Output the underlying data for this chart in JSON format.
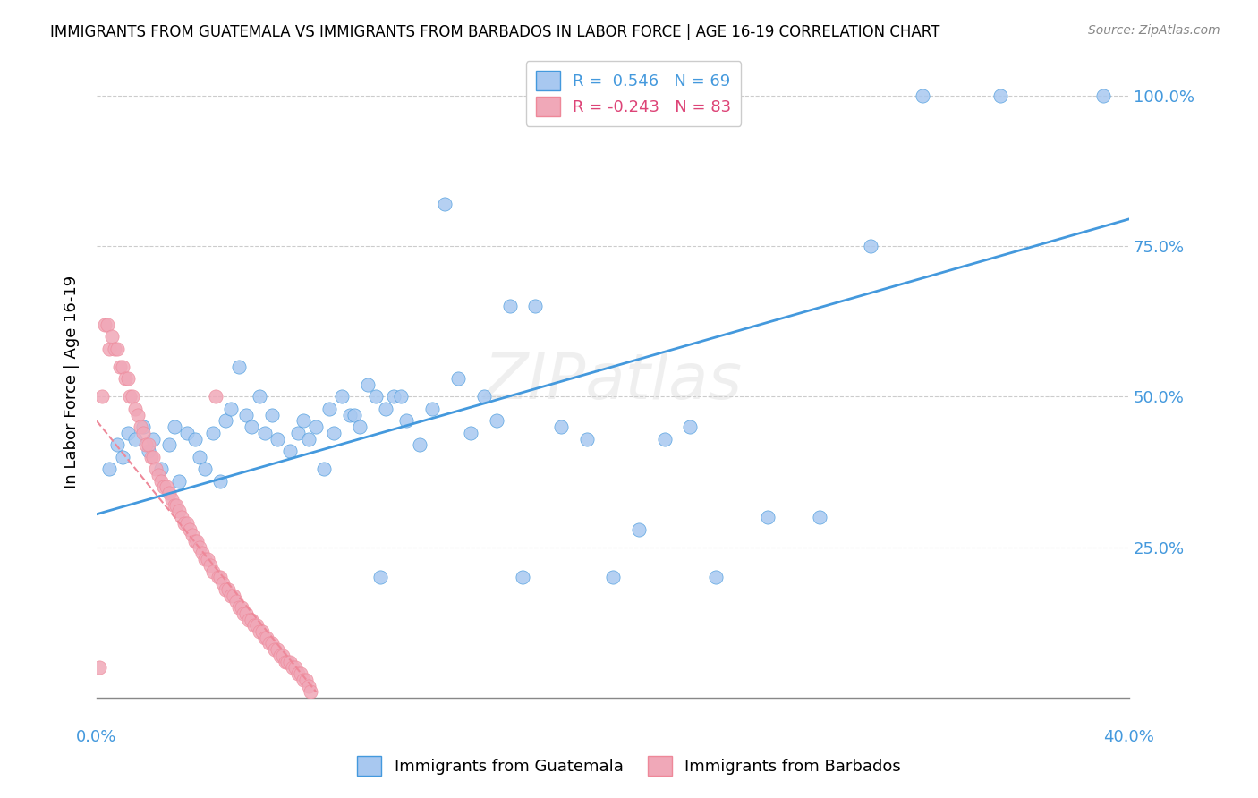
{
  "title": "IMMIGRANTS FROM GUATEMALA VS IMMIGRANTS FROM BARBADOS IN LABOR FORCE | AGE 16-19 CORRELATION CHART",
  "source": "Source: ZipAtlas.com",
  "ylabel": "In Labor Force | Age 16-19",
  "watermark": "ZIPatlas",
  "color_blue": "#a8c8f0",
  "color_pink": "#f0a8b8",
  "line_blue": "#4499dd",
  "line_pink": "#ee8899",
  "x_min": 0.0,
  "x_max": 0.4,
  "y_min": 0.0,
  "y_max": 1.05,
  "blue_scatter_x": [
    0.005,
    0.008,
    0.01,
    0.012,
    0.015,
    0.018,
    0.02,
    0.022,
    0.025,
    0.028,
    0.03,
    0.032,
    0.035,
    0.038,
    0.04,
    0.042,
    0.045,
    0.048,
    0.05,
    0.052,
    0.055,
    0.058,
    0.06,
    0.063,
    0.065,
    0.068,
    0.07,
    0.075,
    0.078,
    0.08,
    0.082,
    0.085,
    0.088,
    0.09,
    0.092,
    0.095,
    0.098,
    0.1,
    0.102,
    0.105,
    0.108,
    0.11,
    0.112,
    0.115,
    0.118,
    0.12,
    0.125,
    0.13,
    0.135,
    0.14,
    0.145,
    0.15,
    0.155,
    0.16,
    0.165,
    0.17,
    0.18,
    0.19,
    0.2,
    0.21,
    0.22,
    0.23,
    0.24,
    0.26,
    0.28,
    0.3,
    0.32,
    0.35,
    0.39
  ],
  "blue_scatter_y": [
    0.38,
    0.42,
    0.4,
    0.44,
    0.43,
    0.45,
    0.41,
    0.43,
    0.38,
    0.42,
    0.45,
    0.36,
    0.44,
    0.43,
    0.4,
    0.38,
    0.44,
    0.36,
    0.46,
    0.48,
    0.55,
    0.47,
    0.45,
    0.5,
    0.44,
    0.47,
    0.43,
    0.41,
    0.44,
    0.46,
    0.43,
    0.45,
    0.38,
    0.48,
    0.44,
    0.5,
    0.47,
    0.47,
    0.45,
    0.52,
    0.5,
    0.2,
    0.48,
    0.5,
    0.5,
    0.46,
    0.42,
    0.48,
    0.82,
    0.53,
    0.44,
    0.5,
    0.46,
    0.65,
    0.2,
    0.65,
    0.45,
    0.43,
    0.2,
    0.28,
    0.43,
    0.45,
    0.2,
    0.3,
    0.3,
    0.75,
    1.0,
    1.0,
    1.0
  ],
  "pink_scatter_x": [
    0.001,
    0.002,
    0.003,
    0.004,
    0.005,
    0.006,
    0.007,
    0.008,
    0.009,
    0.01,
    0.011,
    0.012,
    0.013,
    0.014,
    0.015,
    0.016,
    0.017,
    0.018,
    0.019,
    0.02,
    0.021,
    0.022,
    0.023,
    0.024,
    0.025,
    0.026,
    0.027,
    0.028,
    0.029,
    0.03,
    0.031,
    0.032,
    0.033,
    0.034,
    0.035,
    0.036,
    0.037,
    0.038,
    0.039,
    0.04,
    0.041,
    0.042,
    0.043,
    0.044,
    0.045,
    0.046,
    0.047,
    0.048,
    0.049,
    0.05,
    0.051,
    0.052,
    0.053,
    0.054,
    0.055,
    0.056,
    0.057,
    0.058,
    0.059,
    0.06,
    0.061,
    0.062,
    0.063,
    0.064,
    0.065,
    0.066,
    0.067,
    0.068,
    0.069,
    0.07,
    0.071,
    0.072,
    0.073,
    0.074,
    0.075,
    0.076,
    0.077,
    0.078,
    0.079,
    0.08,
    0.081,
    0.082,
    0.083
  ],
  "pink_scatter_y": [
    0.05,
    0.5,
    0.62,
    0.62,
    0.58,
    0.6,
    0.58,
    0.58,
    0.55,
    0.55,
    0.53,
    0.53,
    0.5,
    0.5,
    0.48,
    0.47,
    0.45,
    0.44,
    0.42,
    0.42,
    0.4,
    0.4,
    0.38,
    0.37,
    0.36,
    0.35,
    0.35,
    0.34,
    0.33,
    0.32,
    0.32,
    0.31,
    0.3,
    0.29,
    0.29,
    0.28,
    0.27,
    0.26,
    0.26,
    0.25,
    0.24,
    0.23,
    0.23,
    0.22,
    0.21,
    0.5,
    0.2,
    0.2,
    0.19,
    0.18,
    0.18,
    0.17,
    0.17,
    0.16,
    0.15,
    0.15,
    0.14,
    0.14,
    0.13,
    0.13,
    0.12,
    0.12,
    0.11,
    0.11,
    0.1,
    0.1,
    0.09,
    0.09,
    0.08,
    0.08,
    0.07,
    0.07,
    0.06,
    0.06,
    0.06,
    0.05,
    0.05,
    0.04,
    0.04,
    0.03,
    0.03,
    0.02,
    0.01
  ],
  "blue_line_x": [
    0.0,
    0.4
  ],
  "blue_line_y": [
    0.305,
    0.795
  ],
  "pink_line_x": [
    0.0,
    0.085
  ],
  "pink_line_y": [
    0.46,
    0.01
  ]
}
